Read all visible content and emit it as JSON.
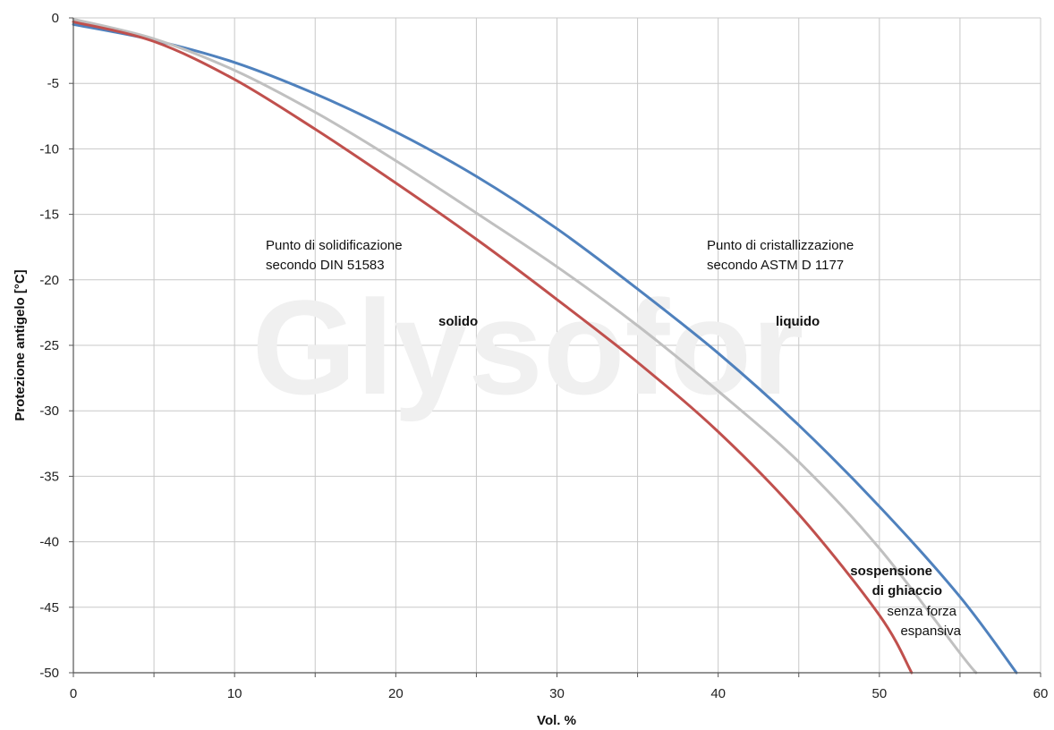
{
  "chart_data": {
    "type": "line",
    "title": "",
    "xlabel": "Vol. %",
    "ylabel": "Protezione antigelo [°C]",
    "xlim": [
      0,
      60
    ],
    "ylim": [
      -50,
      0
    ],
    "x_ticks": [
      0,
      10,
      20,
      30,
      40,
      50,
      60
    ],
    "y_ticks": [
      0,
      -5,
      -10,
      -15,
      -20,
      -25,
      -30,
      -35,
      -40,
      -45,
      -50
    ],
    "grid": true,
    "watermark": "Glysofor",
    "colors": {
      "blue": "#4f81bd",
      "gray": "#c0c0c0",
      "red": "#c0504d",
      "grid": "#c8c8c8",
      "axis": "#555555"
    },
    "series": [
      {
        "color": "#4f81bd",
        "x": [
          0,
          5,
          10,
          15,
          20,
          25,
          30,
          35,
          40,
          45,
          50,
          55,
          58.5
        ],
        "y": [
          -0.5,
          -1.7,
          -3.4,
          -5.8,
          -8.7,
          -12.1,
          -16.1,
          -20.7,
          -25.6,
          -31.1,
          -37.3,
          -44.2,
          -50
        ]
      },
      {
        "color": "#c0c0c0",
        "x": [
          0,
          5,
          10,
          15,
          20,
          25,
          30,
          35,
          40,
          45,
          50,
          55,
          56
        ],
        "y": [
          -0.1,
          -1.6,
          -4.0,
          -7.2,
          -10.9,
          -14.9,
          -19.0,
          -23.5,
          -28.5,
          -33.9,
          -40.5,
          -48.5,
          -50
        ]
      },
      {
        "color": "#c0504d",
        "x": [
          0,
          5,
          10,
          15,
          20,
          25,
          30,
          35,
          40,
          45,
          50,
          52
        ],
        "y": [
          -0.3,
          -1.8,
          -4.7,
          -8.5,
          -12.6,
          -16.9,
          -21.5,
          -26.3,
          -31.6,
          -37.9,
          -45.6,
          -50
        ]
      }
    ],
    "annotations": {
      "solidification": [
        "Punto di solidificazione",
        "secondo DIN 51583"
      ],
      "crystallization": [
        "Punto di cristallizzazione",
        "secondo ASTM D 1177"
      ],
      "solid": "solido",
      "liquid": "liquido",
      "suspension": [
        "sospensione",
        "di ghiaccio"
      ],
      "no_force": [
        "senza forza",
        "espansiva"
      ]
    }
  }
}
